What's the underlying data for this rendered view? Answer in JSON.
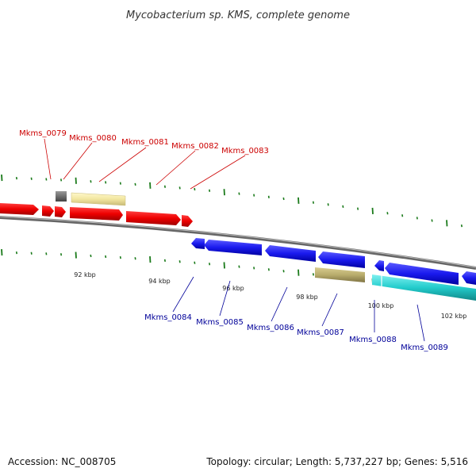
{
  "title": "Mycobacterium sp. KMS, complete genome",
  "footer": {
    "accession": "Accession: NC_008705",
    "summary": "Topology: circular; Length: 5,737,227 bp; Genes: 5,516"
  },
  "colors": {
    "forward_label": "#cc0000",
    "reverse_label": "#000099",
    "forward_gene": "#ee0000",
    "reverse_gene": "#1a1aee",
    "cyan_gene": "#22cccc",
    "pale_gene": "#f2e6a0",
    "olive_gene": "#b8ac6c",
    "grey_gene": "#666666",
    "backbone": "#888888",
    "ticks": "#1a7a1a"
  },
  "ticks": [
    "92 kbp",
    "94 kbp",
    "96 kbp",
    "98 kbp",
    "100 kbp",
    "102 kbp"
  ],
  "genes_forward": [
    "Mkms_0079",
    "Mkms_0080",
    "Mkms_0081",
    "Mkms_0082",
    "Mkms_0083"
  ],
  "genes_reverse": [
    "Mkms_0084",
    "Mkms_0085",
    "Mkms_0086",
    "Mkms_0087",
    "Mkms_0088",
    "Mkms_0089"
  ]
}
